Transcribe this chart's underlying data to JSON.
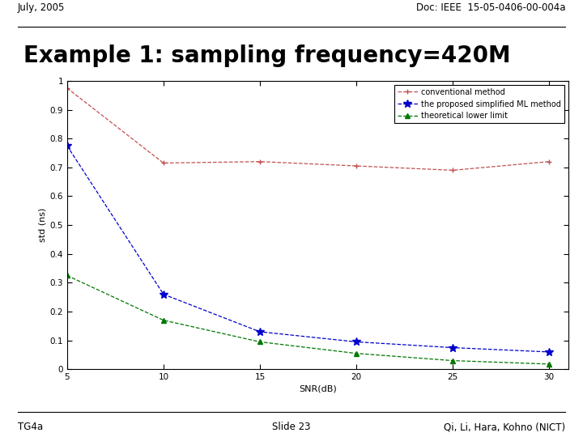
{
  "header_left": "July, 2005",
  "header_right": "Doc: IEEE  15-05-0406-00-004a",
  "title": "Example 1: sampling frequency=420M",
  "footer_left": "TG4a",
  "footer_center": "Slide 23",
  "footer_right": "Qi, Li, Hara, Kohno (NICT)",
  "xlabel": "SNR(dB)",
  "ylabel": "std (ns)",
  "xlim": [
    5,
    31
  ],
  "ylim": [
    0,
    1.0
  ],
  "xticks": [
    5,
    10,
    15,
    20,
    25,
    30
  ],
  "yticks": [
    0,
    0.1,
    0.2,
    0.3,
    0.4,
    0.5,
    0.6,
    0.7,
    0.8,
    0.9,
    1.0
  ],
  "conventional_x": [
    5,
    10,
    15,
    20,
    25,
    30
  ],
  "conventional_y": [
    0.975,
    0.715,
    0.72,
    0.705,
    0.69,
    0.72
  ],
  "conventional_color": "#c05050",
  "conventional_marker": "+",
  "conventional_label": "conventional method",
  "proposed_x": [
    5,
    10,
    15,
    20,
    25,
    30
  ],
  "proposed_y": [
    0.775,
    0.26,
    0.13,
    0.095,
    0.075,
    0.06
  ],
  "proposed_color": "#0000cc",
  "proposed_marker": "*",
  "proposed_label": "the proposed simplified ML method",
  "theoretical_x": [
    5,
    10,
    15,
    20,
    25,
    30
  ],
  "theoretical_y": [
    0.325,
    0.17,
    0.095,
    0.055,
    0.03,
    0.018
  ],
  "theoretical_color": "#007700",
  "theoretical_marker": "^",
  "theoretical_label": "theoretical lower limit",
  "bg_color": "#ffffff",
  "plot_bg_color": "#ffffff"
}
